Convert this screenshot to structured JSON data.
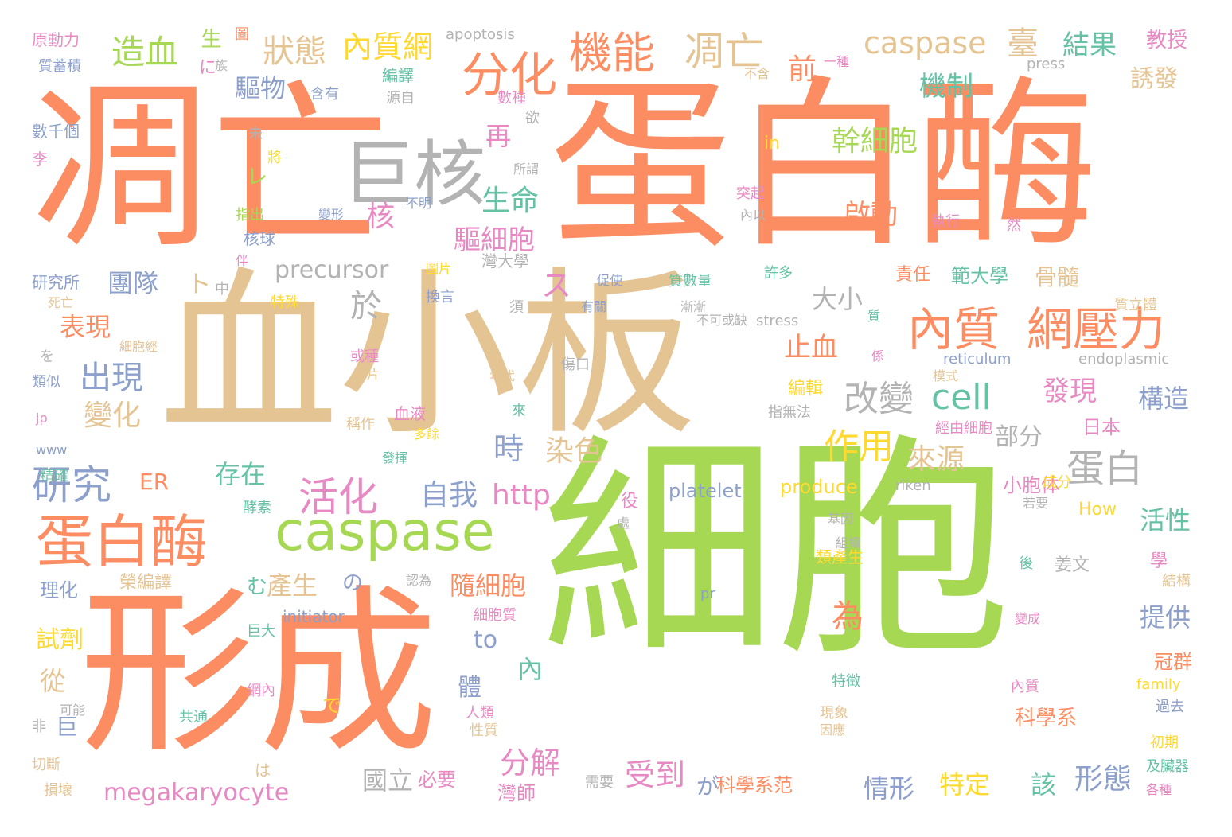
{
  "colors": {
    "orange": "#fc8d62",
    "green": "#a6d854",
    "tan": "#e5c494",
    "gray": "#b3b3b3",
    "blue": "#8da0cb",
    "pink": "#e78ac3",
    "yellow": "#ffd92f",
    "teal": "#66c2a5"
  },
  "words": [
    {
      "t": "凋亡",
      "c": "orange"
    },
    {
      "t": "蛋白酶",
      "c": "orange"
    },
    {
      "t": "血小板",
      "c": "tan"
    },
    {
      "t": "細胞",
      "c": "green"
    },
    {
      "t": "形成",
      "c": "orange"
    },
    {
      "t": "巨核",
      "c": "gray"
    },
    {
      "t": "caspase",
      "c": "green"
    },
    {
      "t": "蛋白酶",
      "c": "orange"
    },
    {
      "t": "內質",
      "c": "orange"
    },
    {
      "t": "網壓力",
      "c": "orange"
    },
    {
      "t": "分化",
      "c": "orange"
    },
    {
      "t": "機能",
      "c": "orange"
    },
    {
      "t": "凋亡",
      "c": "tan"
    },
    {
      "t": "caspase",
      "c": "tan"
    },
    {
      "t": "造血",
      "c": "green"
    },
    {
      "t": "狀態",
      "c": "tan"
    },
    {
      "t": "內質網",
      "c": "yellow"
    },
    {
      "t": "臺",
      "c": "tan"
    },
    {
      "t": "結果",
      "c": "teal"
    },
    {
      "t": "教授",
      "c": "pink"
    },
    {
      "t": "研究",
      "c": "blue"
    },
    {
      "t": "活化",
      "c": "pink"
    },
    {
      "t": "蛋白",
      "c": "gray"
    },
    {
      "t": "改變",
      "c": "gray"
    },
    {
      "t": "cell",
      "c": "teal"
    },
    {
      "t": "發現",
      "c": "pink"
    },
    {
      "t": "構造",
      "c": "blue"
    },
    {
      "t": "出現",
      "c": "blue"
    },
    {
      "t": "變化",
      "c": "tan"
    },
    {
      "t": "表現",
      "c": "orange"
    },
    {
      "t": "團隊",
      "c": "blue"
    },
    {
      "t": "precursor",
      "c": "gray"
    },
    {
      "t": "於",
      "c": "gray"
    },
    {
      "t": "大小",
      "c": "gray"
    },
    {
      "t": "止血",
      "c": "orange"
    },
    {
      "t": "作用",
      "c": "yellow"
    },
    {
      "t": "來源",
      "c": "tan"
    },
    {
      "t": "部分",
      "c": "gray"
    },
    {
      "t": "日本",
      "c": "pink"
    },
    {
      "t": "自我",
      "c": "blue"
    },
    {
      "t": "http",
      "c": "pink"
    },
    {
      "t": "時",
      "c": "blue"
    },
    {
      "t": "染色",
      "c": "tan"
    },
    {
      "t": "存在",
      "c": "teal"
    },
    {
      "t": "ER",
      "c": "orange"
    },
    {
      "t": "受到",
      "c": "pink"
    },
    {
      "t": "分解",
      "c": "pink"
    },
    {
      "t": "megakaryocyte",
      "c": "pink"
    },
    {
      "t": "國立",
      "c": "gray"
    },
    {
      "t": "情形",
      "c": "blue"
    },
    {
      "t": "特定",
      "c": "yellow"
    },
    {
      "t": "該",
      "c": "teal"
    },
    {
      "t": "形態",
      "c": "blue"
    },
    {
      "t": "platelet",
      "c": "blue"
    },
    {
      "t": "produce",
      "c": "yellow"
    },
    {
      "t": "riken",
      "c": "gray"
    },
    {
      "t": "How",
      "c": "yellow"
    },
    {
      "t": "活性",
      "c": "teal"
    },
    {
      "t": "幹細胞",
      "c": "green"
    },
    {
      "t": "啟動",
      "c": "orange"
    },
    {
      "t": "機制",
      "c": "teal"
    },
    {
      "t": "誘發",
      "c": "tan"
    },
    {
      "t": "前",
      "c": "orange"
    },
    {
      "t": "生命",
      "c": "teal"
    },
    {
      "t": "驅細胞",
      "c": "pink"
    },
    {
      "t": "核",
      "c": "pink"
    },
    {
      "t": "再",
      "c": "pink"
    },
    {
      "t": "驅物",
      "c": "blue"
    },
    {
      "t": "為",
      "c": "orange"
    },
    {
      "t": "產生",
      "c": "tan"
    },
    {
      "t": "隨細胞",
      "c": "orange"
    },
    {
      "t": "提供",
      "c": "blue"
    },
    {
      "t": "骨髓",
      "c": "tan"
    },
    {
      "t": "範大學",
      "c": "teal"
    },
    {
      "t": "責任",
      "c": "orange"
    },
    {
      "t": "試劑",
      "c": "yellow"
    },
    {
      "t": "理化",
      "c": "blue"
    },
    {
      "t": "榮編譯",
      "c": "tan"
    },
    {
      "t": "to",
      "c": "blue"
    },
    {
      "t": "內",
      "c": "teal"
    },
    {
      "t": "體",
      "c": "blue"
    },
    {
      "t": "從",
      "c": "tan"
    },
    {
      "t": "巨",
      "c": "blue"
    },
    {
      "t": "冠群",
      "c": "orange"
    },
    {
      "t": "科學系",
      "c": "orange"
    },
    {
      "t": "科學系范",
      "c": "orange"
    },
    {
      "t": "が",
      "c": "blue"
    },
    {
      "t": "必要",
      "c": "pink"
    },
    {
      "t": "灣師",
      "c": "pink"
    },
    {
      "t": "小胞体",
      "c": "pink"
    },
    {
      "t": "姜文",
      "c": "gray"
    },
    {
      "t": "apoptosis",
      "c": "gray"
    },
    {
      "t": "原動力",
      "c": "pink"
    },
    {
      "t": "質蓄積",
      "c": "blue"
    },
    {
      "t": "數千個",
      "c": "blue"
    },
    {
      "t": "李",
      "c": "pink"
    },
    {
      "t": "研究所",
      "c": "blue"
    },
    {
      "t": "死亡",
      "c": "tan"
    },
    {
      "t": "を",
      "c": "gray"
    },
    {
      "t": "類似",
      "c": "blue"
    },
    {
      "t": "jp",
      "c": "pink"
    },
    {
      "t": "www",
      "c": "blue"
    },
    {
      "t": "精確",
      "c": "teal"
    },
    {
      "t": "可能",
      "c": "gray"
    },
    {
      "t": "非",
      "c": "gray"
    },
    {
      "t": "切斷",
      "c": "tan"
    },
    {
      "t": "損壞",
      "c": "tan"
    },
    {
      "t": "一種",
      "c": "pink"
    },
    {
      "t": "press",
      "c": "gray"
    },
    {
      "t": "含有",
      "c": "blue"
    },
    {
      "t": "源自",
      "c": "gray"
    },
    {
      "t": "編譯",
      "c": "teal"
    },
    {
      "t": "數種",
      "c": "pink"
    },
    {
      "t": "不含",
      "c": "tan"
    },
    {
      "t": "in",
      "c": "yellow"
    },
    {
      "t": "所謂",
      "c": "gray"
    },
    {
      "t": "突起",
      "c": "pink"
    },
    {
      "t": "內以",
      "c": "gray"
    },
    {
      "t": "執行",
      "c": "pink"
    },
    {
      "t": "然",
      "c": "pink"
    },
    {
      "t": "許多",
      "c": "teal"
    },
    {
      "t": "質數量",
      "c": "teal"
    },
    {
      "t": "有關",
      "c": "blue"
    },
    {
      "t": "促使",
      "c": "blue"
    },
    {
      "t": "換言",
      "c": "blue"
    },
    {
      "t": "灣大學",
      "c": "gray"
    },
    {
      "t": "不可或缺",
      "c": "gray"
    },
    {
      "t": "stress",
      "c": "gray"
    },
    {
      "t": "質",
      "c": "teal"
    },
    {
      "t": "係",
      "c": "pink"
    },
    {
      "t": "reticulum",
      "c": "blue"
    },
    {
      "t": "endoplasmic",
      "c": "gray"
    },
    {
      "t": "模式",
      "c": "tan"
    },
    {
      "t": "或種",
      "c": "pink"
    },
    {
      "t": "碎片",
      "c": "tan"
    },
    {
      "t": "年代",
      "c": "tan"
    },
    {
      "t": "傷口",
      "c": "gray"
    },
    {
      "t": "血液",
      "c": "pink"
    },
    {
      "t": "稱作",
      "c": "tan"
    },
    {
      "t": "多餘",
      "c": "yellow"
    },
    {
      "t": "來",
      "c": "teal"
    },
    {
      "t": "發揮",
      "c": "teal"
    },
    {
      "t": "酵素",
      "c": "teal"
    },
    {
      "t": "役",
      "c": "pink"
    },
    {
      "t": "處",
      "c": "gray"
    },
    {
      "t": "基因",
      "c": "gray"
    },
    {
      "t": "組織",
      "c": "gray"
    },
    {
      "t": "認為",
      "c": "gray"
    },
    {
      "t": "細胞質",
      "c": "pink"
    },
    {
      "t": "initiator",
      "c": "blue"
    },
    {
      "t": "巨大",
      "c": "teal"
    },
    {
      "t": "網內",
      "c": "pink"
    },
    {
      "t": "共通",
      "c": "teal"
    },
    {
      "t": "人類",
      "c": "pink"
    },
    {
      "t": "性質",
      "c": "tan"
    },
    {
      "t": "で",
      "c": "yellow"
    },
    {
      "t": "は",
      "c": "tan"
    },
    {
      "t": "需要",
      "c": "gray"
    },
    {
      "t": "特徵",
      "c": "teal"
    },
    {
      "t": "現象",
      "c": "tan"
    },
    {
      "t": "因應",
      "c": "tan"
    },
    {
      "t": "內質",
      "c": "pink"
    },
    {
      "t": "family",
      "c": "yellow"
    },
    {
      "t": "過去",
      "c": "blue"
    },
    {
      "t": "初期",
      "c": "yellow"
    },
    {
      "t": "及臟器",
      "c": "teal"
    },
    {
      "t": "各種",
      "c": "pink"
    },
    {
      "t": "學",
      "c": "pink"
    },
    {
      "t": "結構",
      "c": "tan"
    },
    {
      "t": "變成",
      "c": "pink"
    },
    {
      "t": "後",
      "c": "teal"
    },
    {
      "t": "若要",
      "c": "gray"
    },
    {
      "t": "成分",
      "c": "yellow"
    },
    {
      "t": "類產生",
      "c": "yellow"
    },
    {
      "t": "經由細胞",
      "c": "pink"
    },
    {
      "t": "指無法",
      "c": "gray"
    },
    {
      "t": "編輯",
      "c": "yellow"
    },
    {
      "t": "pr",
      "c": "blue"
    },
    {
      "t": "細胞經",
      "c": "tan"
    },
    {
      "t": "特殊",
      "c": "yellow"
    },
    {
      "t": "漸漸",
      "c": "gray"
    },
    {
      "t": "中",
      "c": "gray"
    },
    {
      "t": "ト",
      "c": "tan"
    },
    {
      "t": "ス",
      "c": "pink"
    },
    {
      "t": "レ",
      "c": "green"
    },
    {
      "t": "む",
      "c": "teal"
    },
    {
      "t": "の",
      "c": "blue"
    },
    {
      "t": "生",
      "c": "green"
    },
    {
      "t": "に",
      "c": "pink"
    },
    {
      "t": "族",
      "c": "gray"
    },
    {
      "t": "圖",
      "c": "orange"
    },
    {
      "t": "欲",
      "c": "gray"
    },
    {
      "t": "未",
      "c": "gray"
    },
    {
      "t": "將",
      "c": "yellow"
    },
    {
      "t": "不明",
      "c": "blue"
    },
    {
      "t": "指出",
      "c": "green"
    },
    {
      "t": "變形",
      "c": "blue"
    },
    {
      "t": "核球",
      "c": "blue"
    },
    {
      "t": "伴",
      "c": "pink"
    },
    {
      "t": "圖片",
      "c": "yellow"
    },
    {
      "t": "質立體",
      "c": "tan"
    },
    {
      "t": "須",
      "c": "gray"
    }
  ]
}
